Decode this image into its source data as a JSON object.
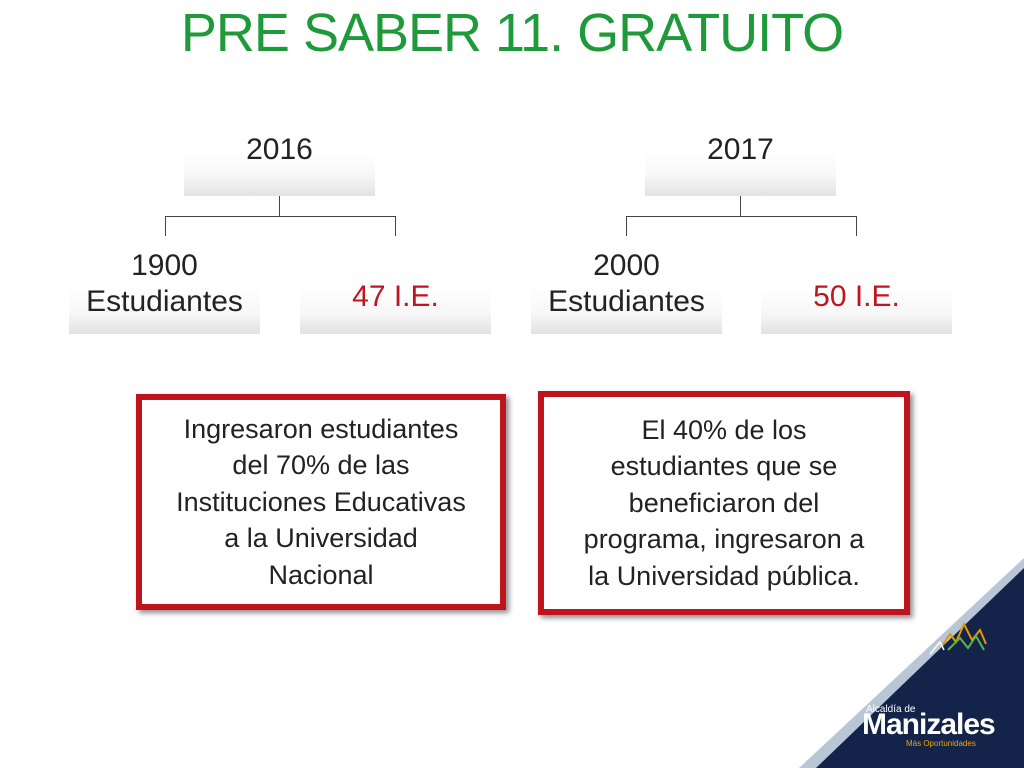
{
  "title": "PRE SABER 11. GRATUITO",
  "groups": [
    {
      "year": "2016",
      "students": [
        "1900",
        "Estudiantes"
      ],
      "institutions": "47 I.E."
    },
    {
      "year": "2017",
      "students": [
        "2000",
        "Estudiantes"
      ],
      "institutions": "50 I.E."
    }
  ],
  "callouts": [
    [
      "Ingresaron estudiantes",
      "del 70% de las",
      "Instituciones Educativas",
      "a la Universidad",
      "Nacional"
    ],
    [
      "El 40% de los",
      "estudiantes que se",
      "beneficiaron del",
      "programa, ingresaron a",
      "la Universidad pública."
    ]
  ],
  "logo": {
    "prefix": "Alcaldía de",
    "name": "Manizales",
    "tagline": "Más Oportunidades"
  },
  "colors": {
    "title": "#1f9a3a",
    "accent_red": "#c0151e",
    "navy": "#13234a"
  }
}
